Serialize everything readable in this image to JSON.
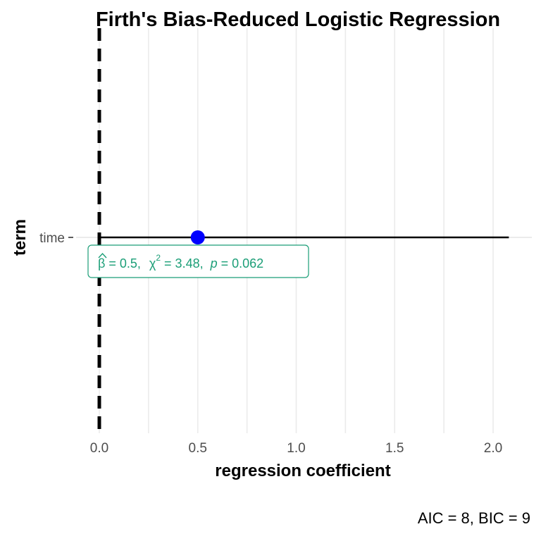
{
  "chart_data": {
    "type": "scatter",
    "title": "Firth's Bias-Reduced Logistic Regression",
    "xlabel": "regression coefficient",
    "ylabel": "term",
    "xlim": [
      0,
      2.15
    ],
    "x_ticks": [
      "0.0",
      "0.5",
      "1.0",
      "1.5",
      "2.0"
    ],
    "x_tick_values": [
      0,
      0.5,
      1.0,
      1.5,
      2.0
    ],
    "grid": true,
    "reference_line": 0,
    "terms": [
      {
        "name": "time",
        "estimate": 0.5,
        "conf_low": 0.0,
        "conf_high": 2.08,
        "label": {
          "beta": "β",
          "beta_value": "= 0.5,",
          "chi": "χ",
          "chi_sup": "2",
          "chi_value": "= 3.48,",
          "p": "p",
          "p_value": "= 0.062"
        }
      }
    ],
    "caption": "AIC = 8, BIC = 9",
    "colors": {
      "point": "#0000ff",
      "annotation": "#1b9e77",
      "grid": "#ebebeb",
      "ci_line": "#000000",
      "reference_line": "#000000"
    }
  }
}
